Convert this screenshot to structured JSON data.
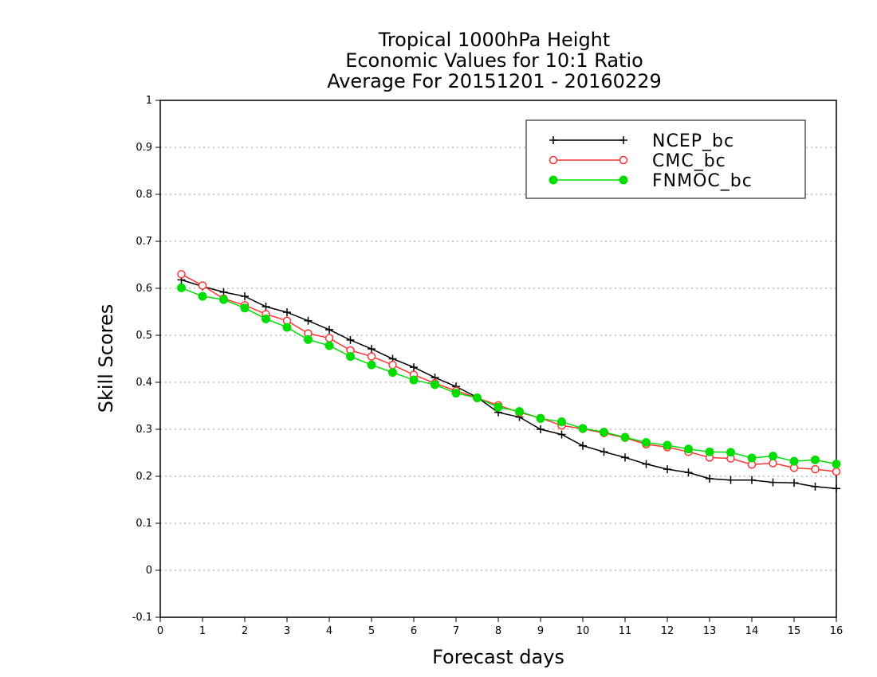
{
  "chart_data": {
    "type": "line",
    "title": [
      "Tropical 1000hPa Height",
      "Economic Values for 10:1 Ratio",
      "Average For 20151201 - 20160229"
    ],
    "xlabel": "Forecast days",
    "ylabel": "Skill Scores",
    "xlim": [
      0,
      16
    ],
    "ylim": [
      -0.1,
      1
    ],
    "xticks": [
      "0",
      "1",
      "2",
      "3",
      "4",
      "5",
      "6",
      "7",
      "8",
      "9",
      "10",
      "11",
      "12",
      "13",
      "14",
      "15",
      "16"
    ],
    "yticks": [
      "-0.1",
      "0",
      "0.1",
      "0.2",
      "0.3",
      "0.4",
      "0.5",
      "0.6",
      "0.7",
      "0.8",
      "0.9",
      "1"
    ],
    "grid": "horizontal dotted",
    "legend_position": "top-right",
    "x": [
      0.5,
      1,
      1.5,
      2,
      2.5,
      3,
      3.5,
      4,
      4.5,
      5,
      5.5,
      6,
      6.5,
      7,
      7.5,
      8,
      8.5,
      9,
      9.5,
      10,
      10.5,
      11,
      11.5,
      12,
      12.5,
      13,
      13.5,
      14,
      14.5,
      15,
      15.5,
      16
    ],
    "series": [
      {
        "name": "NCEP_bc",
        "color": "#000000",
        "marker": "plus",
        "values": [
          0.618,
          0.604,
          0.592,
          0.583,
          0.561,
          0.549,
          0.531,
          0.512,
          0.49,
          0.471,
          0.45,
          0.432,
          0.41,
          0.391,
          0.368,
          0.336,
          0.326,
          0.3,
          0.289,
          0.265,
          0.252,
          0.24,
          0.226,
          0.215,
          0.208,
          0.195,
          0.192,
          0.192,
          0.187,
          0.186,
          0.178,
          0.174
        ]
      },
      {
        "name": "CMC_bc",
        "color": "#ff3333",
        "marker": "open-circle",
        "values": [
          0.63,
          0.606,
          0.578,
          0.564,
          0.545,
          0.531,
          0.504,
          0.494,
          0.468,
          0.455,
          0.437,
          0.416,
          0.398,
          0.382,
          0.367,
          0.351,
          0.336,
          0.324,
          0.308,
          0.301,
          0.292,
          0.282,
          0.268,
          0.262,
          0.252,
          0.24,
          0.238,
          0.225,
          0.228,
          0.218,
          0.215,
          0.21
        ]
      },
      {
        "name": "FNMOC_bc",
        "color": "#00dd00",
        "marker": "filled-circle",
        "values": [
          0.601,
          0.583,
          0.576,
          0.558,
          0.535,
          0.517,
          0.491,
          0.478,
          0.455,
          0.437,
          0.421,
          0.405,
          0.395,
          0.377,
          0.367,
          0.347,
          0.338,
          0.323,
          0.316,
          0.302,
          0.294,
          0.283,
          0.272,
          0.266,
          0.258,
          0.252,
          0.251,
          0.239,
          0.243,
          0.232,
          0.235,
          0.226
        ]
      }
    ]
  }
}
